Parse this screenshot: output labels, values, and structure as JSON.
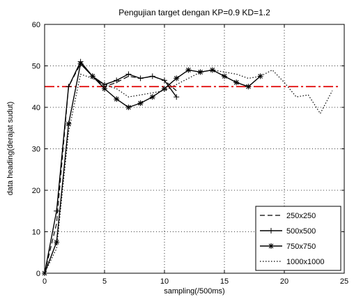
{
  "chart_data": {
    "type": "line",
    "title": "Pengujian target dengan KP=0.9 KD=1.2",
    "xlabel": "sampling(/500ms)",
    "ylabel": "data heading(derajat sudut)",
    "xlim": [
      0,
      25
    ],
    "ylim": [
      0,
      60
    ],
    "xticks": [
      0,
      5,
      10,
      15,
      20,
      25
    ],
    "yticks": [
      0,
      10,
      20,
      30,
      40,
      50,
      60
    ],
    "grid": true,
    "legend_position": "bottom-right",
    "target": {
      "y": 45,
      "color": "#e00000"
    },
    "series": [
      {
        "name": "250x250",
        "style": "dashed",
        "marker": "none",
        "x": [
          0,
          1,
          2,
          3,
          4,
          5,
          6,
          7,
          8,
          9,
          10,
          11
        ],
        "y": [
          0,
          12,
          45,
          50.5,
          47.5,
          45,
          46,
          47.5,
          47,
          47.5,
          46.5,
          44
        ]
      },
      {
        "name": "500x500",
        "style": "solid",
        "marker": "plus",
        "x": [
          0,
          1,
          2,
          3,
          4,
          5,
          6,
          7,
          8,
          9,
          10,
          11
        ],
        "y": [
          0,
          15,
          45,
          51,
          47.5,
          45.5,
          46.5,
          48,
          47,
          47.5,
          46.5,
          42.5
        ]
      },
      {
        "name": "750x750",
        "style": "solid",
        "marker": "star",
        "x": [
          0,
          1,
          2,
          3,
          4,
          5,
          6,
          7,
          8,
          9,
          10,
          11,
          12,
          13,
          14,
          15,
          16,
          17,
          18
        ],
        "y": [
          0,
          7.5,
          36,
          50.5,
          47.5,
          44.5,
          42,
          40,
          41,
          42.5,
          44.5,
          47,
          49,
          48.5,
          49,
          47.5,
          46,
          45,
          47.5
        ]
      },
      {
        "name": "1000x1000",
        "style": "dotted",
        "marker": "none",
        "x": [
          0,
          1,
          2,
          3,
          4,
          5,
          6,
          7,
          8,
          9,
          10,
          11,
          12,
          13,
          14,
          15,
          16,
          17,
          18,
          19,
          20,
          21,
          22,
          23,
          24
        ],
        "y": [
          0,
          6,
          34,
          48,
          47,
          45.5,
          44.5,
          42.5,
          43,
          43.5,
          44,
          45.5,
          47,
          48.5,
          49,
          48.5,
          48,
          47,
          47.5,
          49,
          46,
          42.5,
          43,
          38.5,
          44
        ]
      }
    ]
  }
}
